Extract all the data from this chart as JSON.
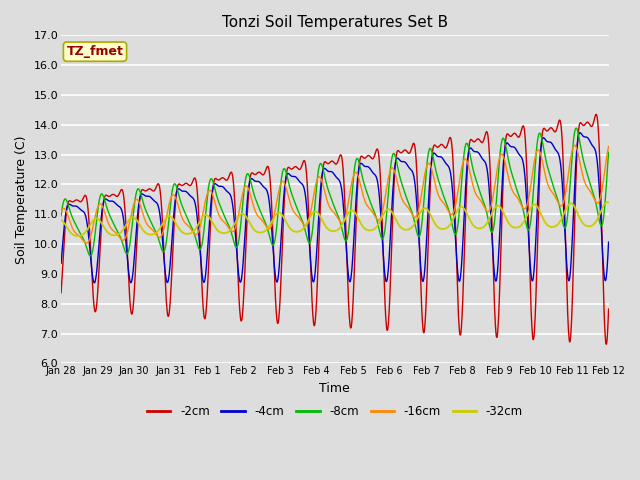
{
  "title": "Tonzi Soil Temperatures Set B",
  "xlabel": "Time",
  "ylabel": "Soil Temperature (C)",
  "ylim": [
    6.0,
    17.0
  ],
  "yticks": [
    6.0,
    7.0,
    8.0,
    9.0,
    10.0,
    11.0,
    12.0,
    13.0,
    14.0,
    15.0,
    16.0,
    17.0
  ],
  "colors": {
    "-2cm": "#cc0000",
    "-4cm": "#0000cc",
    "-8cm": "#00bb00",
    "-16cm": "#ff8800",
    "-32cm": "#cccc00"
  },
  "legend_labels": [
    "-2cm",
    "-4cm",
    "-8cm",
    "-16cm",
    "-32cm"
  ],
  "annotation_text": "TZ_fmet",
  "annotation_color": "#990000",
  "annotation_bg": "#ffffcc",
  "plot_bg": "#dddddd",
  "xtick_labels": [
    "Jan 28",
    "Jan 29",
    "Jan 30",
    "Jan 31",
    "Feb 1",
    "Feb 2",
    "Feb 3",
    "Feb 4",
    "Feb 5",
    "Feb 6",
    "Feb 7",
    "Feb 8",
    "Feb 9",
    "Feb 10",
    "Feb 11",
    "Feb 12"
  ],
  "xtick_positions": [
    0,
    1,
    2,
    3,
    4,
    5,
    6,
    7,
    8,
    9,
    10,
    11,
    12,
    13,
    14,
    15
  ]
}
